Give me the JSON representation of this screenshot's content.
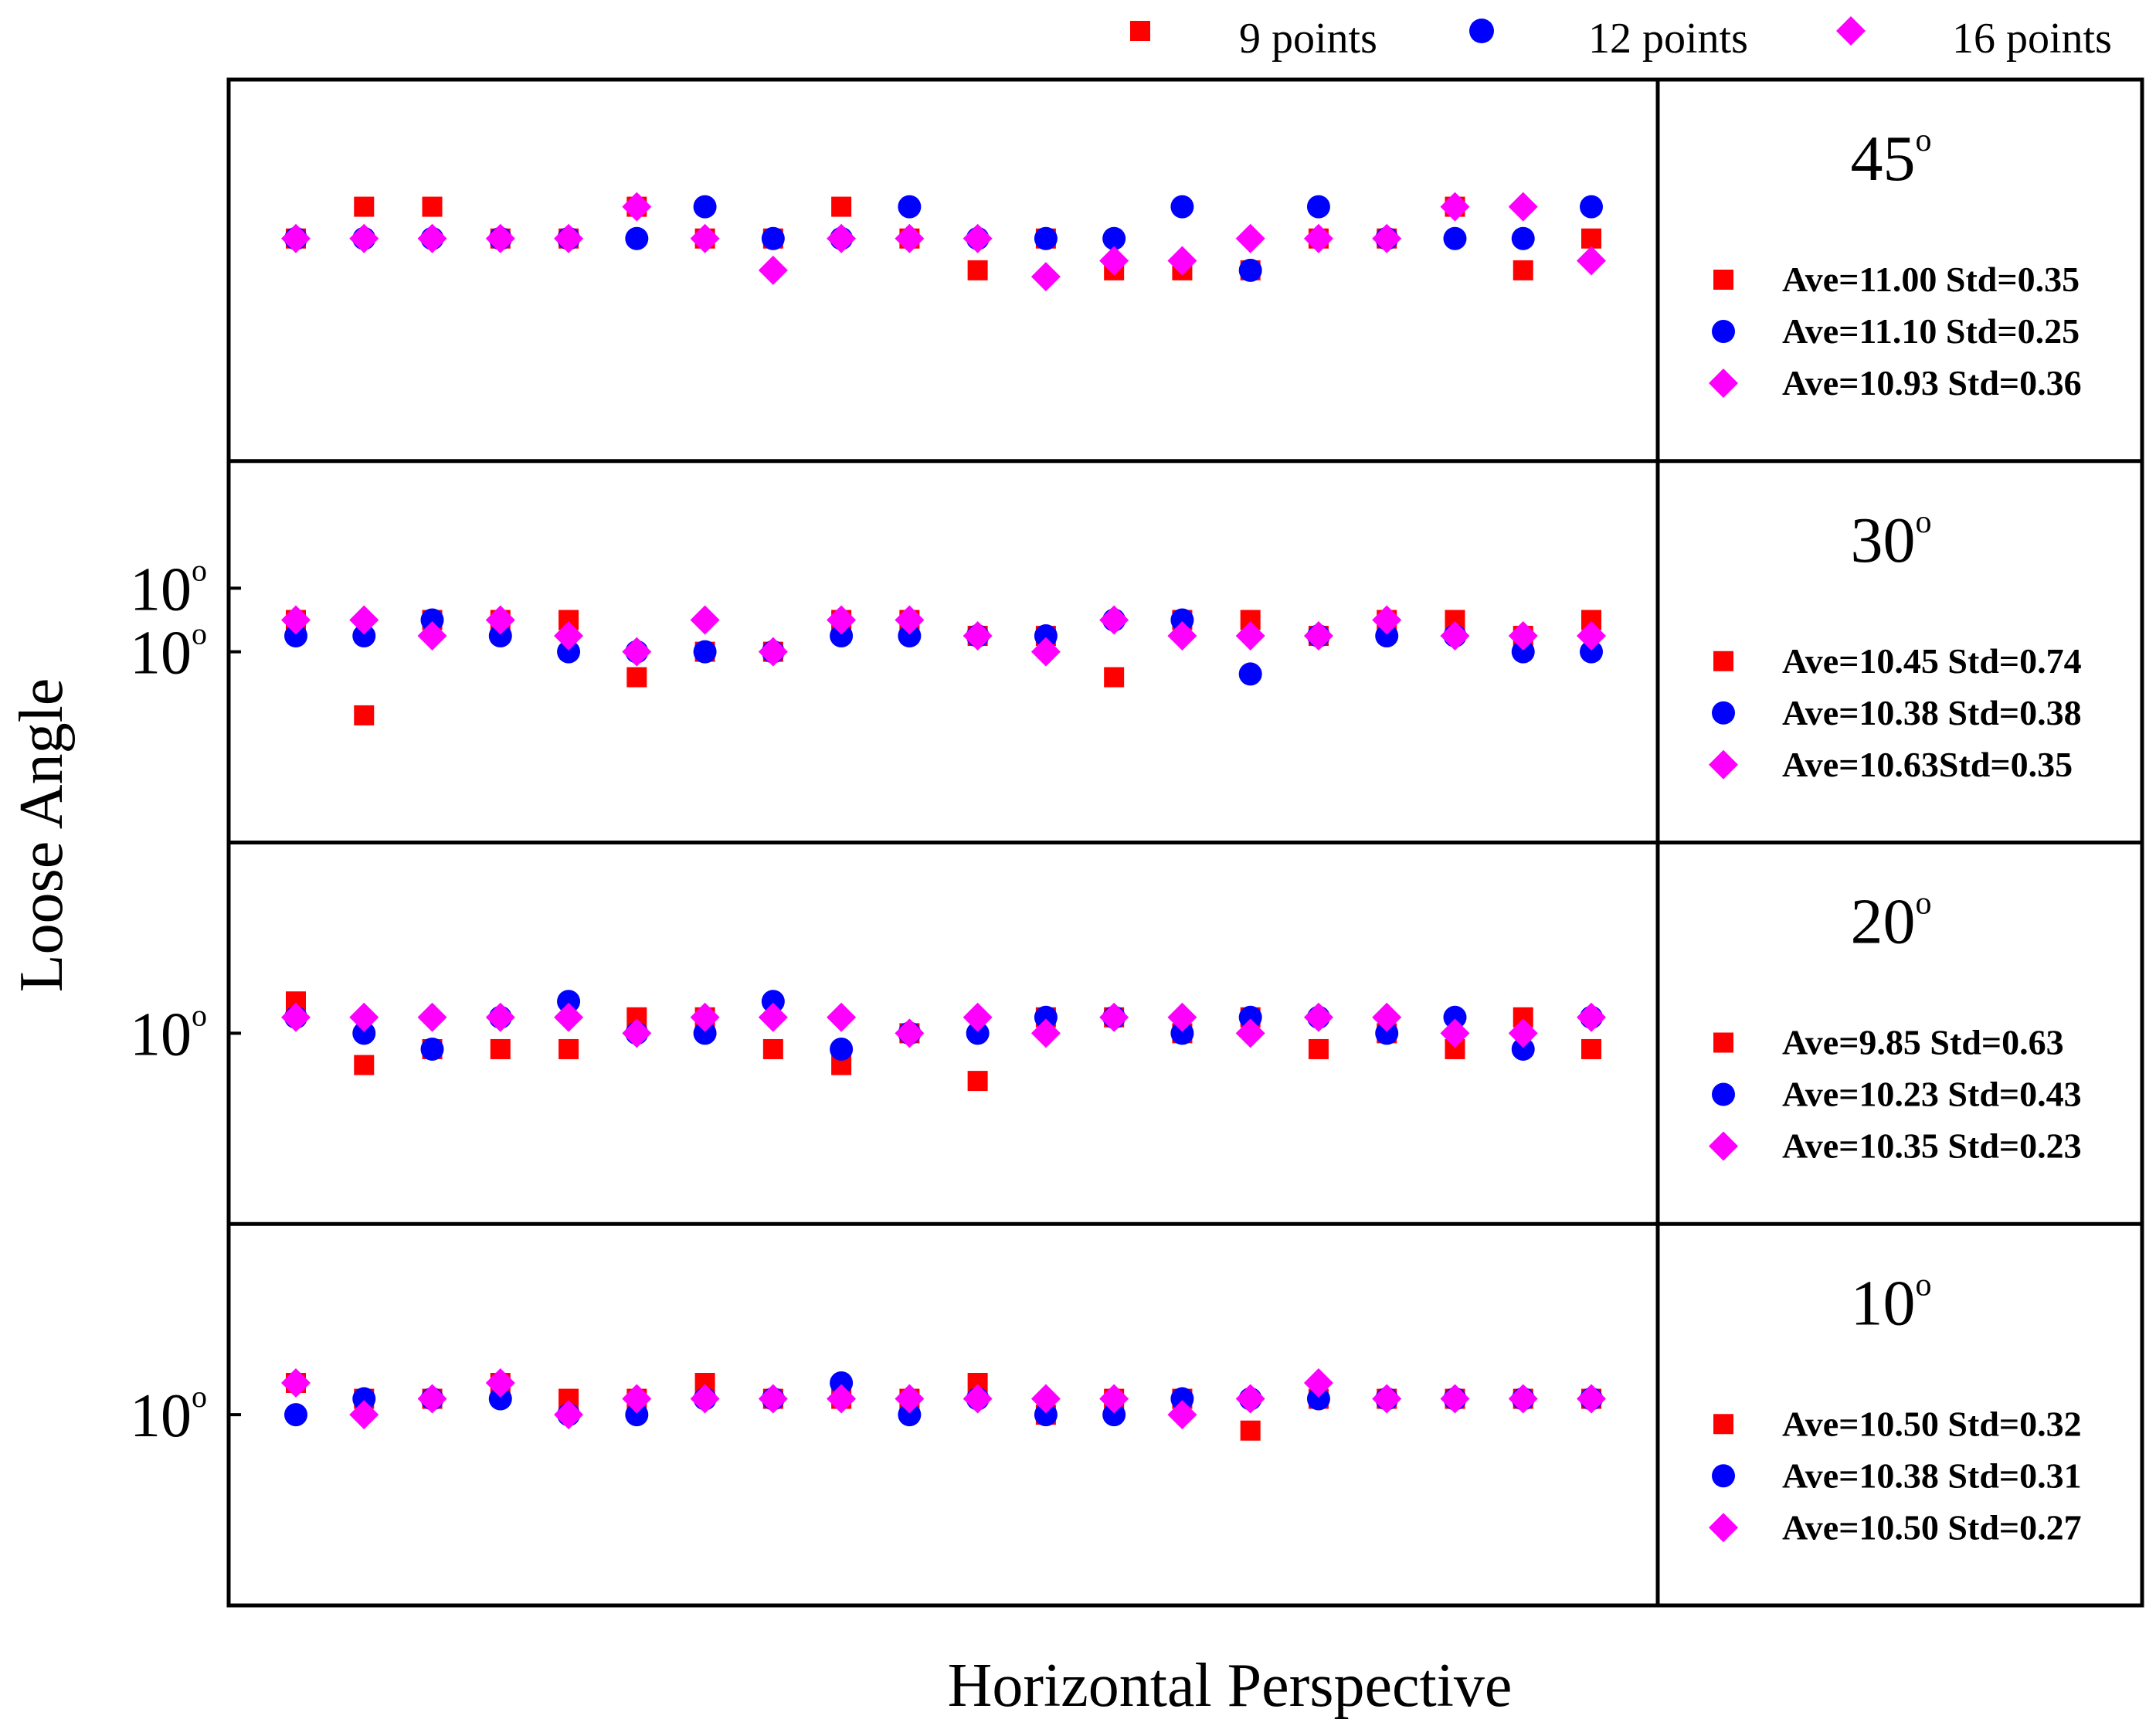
{
  "chart_data": {
    "type": "scatter",
    "title": "",
    "xlabel": "Horizontal Perspective",
    "ylabel": "Loose Angle",
    "grid": false,
    "legend_placement": "top",
    "n_points": 20,
    "legend": [
      {
        "label": "9 points",
        "marker": "square",
        "color": "#ff0000"
      },
      {
        "label": "12 points",
        "marker": "circle",
        "color": "#0000ff"
      },
      {
        "label": "16 points",
        "marker": "diamond",
        "color": "#ff00ff"
      }
    ],
    "panels": [
      {
        "angle_label": "45",
        "angle_unit": "o",
        "tick_label": "10",
        "tick_unit": "o",
        "ylim": [
          10.4,
          11.6
        ],
        "stats": [
          "Ave=11.00 Std=0.35",
          "Ave=11.10 Std=0.25",
          "Ave=10.93 Std=0.36"
        ],
        "series": [
          {
            "name": "9 points",
            "values": [
              11.1,
              11.2,
              11.2,
              11.1,
              11.1,
              11.2,
              11.1,
              11.1,
              11.2,
              11.1,
              11.0,
              11.1,
              11.0,
              11.0,
              11.0,
              11.1,
              11.1,
              11.2,
              11.0,
              11.1
            ]
          },
          {
            "name": "12 points",
            "values": [
              11.1,
              11.1,
              11.1,
              11.1,
              11.1,
              11.1,
              11.2,
              11.1,
              11.1,
              11.2,
              11.1,
              11.1,
              11.1,
              11.2,
              11.0,
              11.2,
              11.1,
              11.1,
              11.1,
              11.2
            ]
          },
          {
            "name": "16 points",
            "values": [
              11.1,
              11.1,
              11.1,
              11.1,
              11.1,
              11.2,
              11.1,
              11.0,
              11.1,
              11.1,
              11.1,
              10.98,
              11.03,
              11.03,
              11.1,
              11.1,
              11.1,
              11.2,
              11.2,
              11.03
            ]
          }
        ]
      },
      {
        "angle_label": "30",
        "angle_unit": "o",
        "tick_label": "10",
        "tick_unit": "o",
        "ylim": [
          9.4,
          10.6
        ],
        "stats": [
          "Ave=10.45 Std=0.74",
          "Ave=10.38 Std=0.38",
          "Ave=10.63Std=0.35"
        ],
        "series": [
          {
            "name": "9 points",
            "values": [
              10.1,
              9.8,
              10.1,
              10.1,
              10.1,
              9.92,
              10.0,
              10.0,
              10.1,
              10.1,
              10.05,
              10.05,
              9.92,
              10.1,
              10.1,
              10.05,
              10.1,
              10.1,
              10.05,
              10.1
            ]
          },
          {
            "name": "12 points",
            "values": [
              10.05,
              10.05,
              10.1,
              10.05,
              10.0,
              10.0,
              10.0,
              10.0,
              10.05,
              10.05,
              10.05,
              10.05,
              10.1,
              10.1,
              9.93,
              10.05,
              10.05,
              10.05,
              10.0,
              10.0
            ]
          },
          {
            "name": "16 points",
            "values": [
              10.1,
              10.1,
              10.05,
              10.1,
              10.05,
              10.0,
              10.1,
              10.0,
              10.1,
              10.1,
              10.05,
              10.0,
              10.1,
              10.05,
              10.05,
              10.05,
              10.1,
              10.05,
              10.05,
              10.05
            ]
          }
        ]
      },
      {
        "angle_label": "20",
        "angle_unit": "o",
        "tick_label": "10",
        "tick_unit": "o",
        "ylim": [
          9.4,
          10.6
        ],
        "stats": [
          "Ave=9.85 Std=0.63",
          "Ave=10.23 Std=0.43",
          "Ave=10.35 Std=0.23"
        ],
        "series": [
          {
            "name": "9 points",
            "values": [
              10.1,
              9.9,
              9.95,
              9.95,
              9.95,
              10.05,
              10.05,
              9.95,
              9.9,
              10.0,
              9.85,
              10.05,
              10.05,
              10.0,
              10.05,
              9.95,
              10.0,
              9.95,
              10.05,
              9.95
            ]
          },
          {
            "name": "12 points",
            "values": [
              10.05,
              10.0,
              9.95,
              10.05,
              10.1,
              10.0,
              10.0,
              10.1,
              9.95,
              10.0,
              10.0,
              10.05,
              10.05,
              10.0,
              10.05,
              10.05,
              10.0,
              10.05,
              9.95,
              10.05
            ]
          },
          {
            "name": "16 points",
            "values": [
              10.05,
              10.05,
              10.05,
              10.05,
              10.05,
              10.0,
              10.05,
              10.05,
              10.05,
              10.0,
              10.05,
              10.0,
              10.05,
              10.05,
              10.0,
              10.05,
              10.05,
              10.0,
              10.0,
              10.05
            ]
          }
        ]
      },
      {
        "angle_label": "10",
        "angle_unit": "o",
        "tick_label": "10",
        "tick_unit": "o",
        "ylim": [
          9.4,
          10.6
        ],
        "stats": [
          "Ave=10.50 Std=0.32",
          "Ave=10.38 Std=0.31",
          "Ave=10.50 Std=0.27"
        ],
        "series": [
          {
            "name": "9 points",
            "values": [
              10.1,
              10.05,
              10.05,
              10.1,
              10.05,
              10.05,
              10.1,
              10.05,
              10.05,
              10.05,
              10.1,
              10.0,
              10.05,
              10.05,
              9.95,
              10.05,
              10.05,
              10.05,
              10.05,
              10.05
            ]
          },
          {
            "name": "12 points",
            "values": [
              10.0,
              10.05,
              10.05,
              10.05,
              10.0,
              10.0,
              10.05,
              10.05,
              10.1,
              10.0,
              10.05,
              10.0,
              10.0,
              10.05,
              10.05,
              10.05,
              10.05,
              10.05,
              10.05,
              10.05
            ]
          },
          {
            "name": "16 points",
            "values": [
              10.1,
              10.0,
              10.05,
              10.1,
              10.0,
              10.05,
              10.05,
              10.05,
              10.05,
              10.05,
              10.05,
              10.05,
              10.05,
              10.0,
              10.05,
              10.1,
              10.05,
              10.05,
              10.05,
              10.05
            ]
          }
        ]
      }
    ]
  }
}
